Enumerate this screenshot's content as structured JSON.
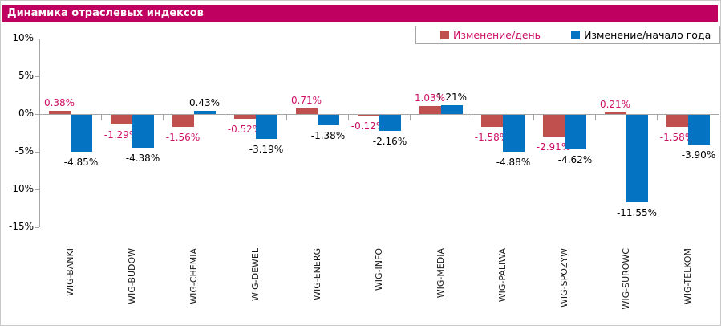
{
  "title": "Динамика отраслевых индексов",
  "header_color": "#c00060",
  "legend": [
    {
      "label": "Изменение/день",
      "swatch_color": "#c0504d",
      "text_color": "#cc1166"
    },
    {
      "label": "Изменение/начало года",
      "swatch_color": "#0473c2",
      "text_color": "#000000"
    }
  ],
  "chart_data": {
    "type": "bar",
    "title": "Динамика отраслевых индексов",
    "categories": [
      "WIG-BANKI",
      "WIG-BUDOW",
      "WIG-CHEMIA",
      "WIG-DEWEL",
      "WIG-ENERG",
      "WIG-INFO",
      "WIG-MEDIA",
      "WIG-PALIWA",
      "WIG-SPOZYW",
      "WIG-SUROWC",
      "WIG-TELKOM"
    ],
    "series": [
      {
        "name": "Изменение/день",
        "color": "#c0504d",
        "label_color": "#cc1166",
        "values": [
          0.38,
          -1.29,
          -1.56,
          -0.52,
          0.71,
          -0.12,
          1.03,
          -1.58,
          -2.91,
          0.21,
          -1.58
        ]
      },
      {
        "name": "Изменение/начало года",
        "color": "#0473c2",
        "label_color": "#000000",
        "values": [
          -4.85,
          -4.38,
          0.43,
          -3.19,
          -1.38,
          -2.16,
          1.21,
          -4.88,
          -4.62,
          -11.55,
          -3.9
        ]
      }
    ],
    "y_ticks": [
      {
        "label": "10%",
        "value": 10
      },
      {
        "label": "5%",
        "value": 5
      },
      {
        "label": "0%",
        "value": 0
      },
      {
        "label": "-5%",
        "value": -5
      },
      {
        "label": "-10%",
        "value": -10
      },
      {
        "label": "-15%",
        "value": -15
      }
    ],
    "ylim": [
      -15,
      10
    ],
    "value_suffix": "%",
    "value_decimals": 2,
    "grid": false,
    "legend_position": "top-right",
    "axis_color": "#a6a6a6"
  }
}
